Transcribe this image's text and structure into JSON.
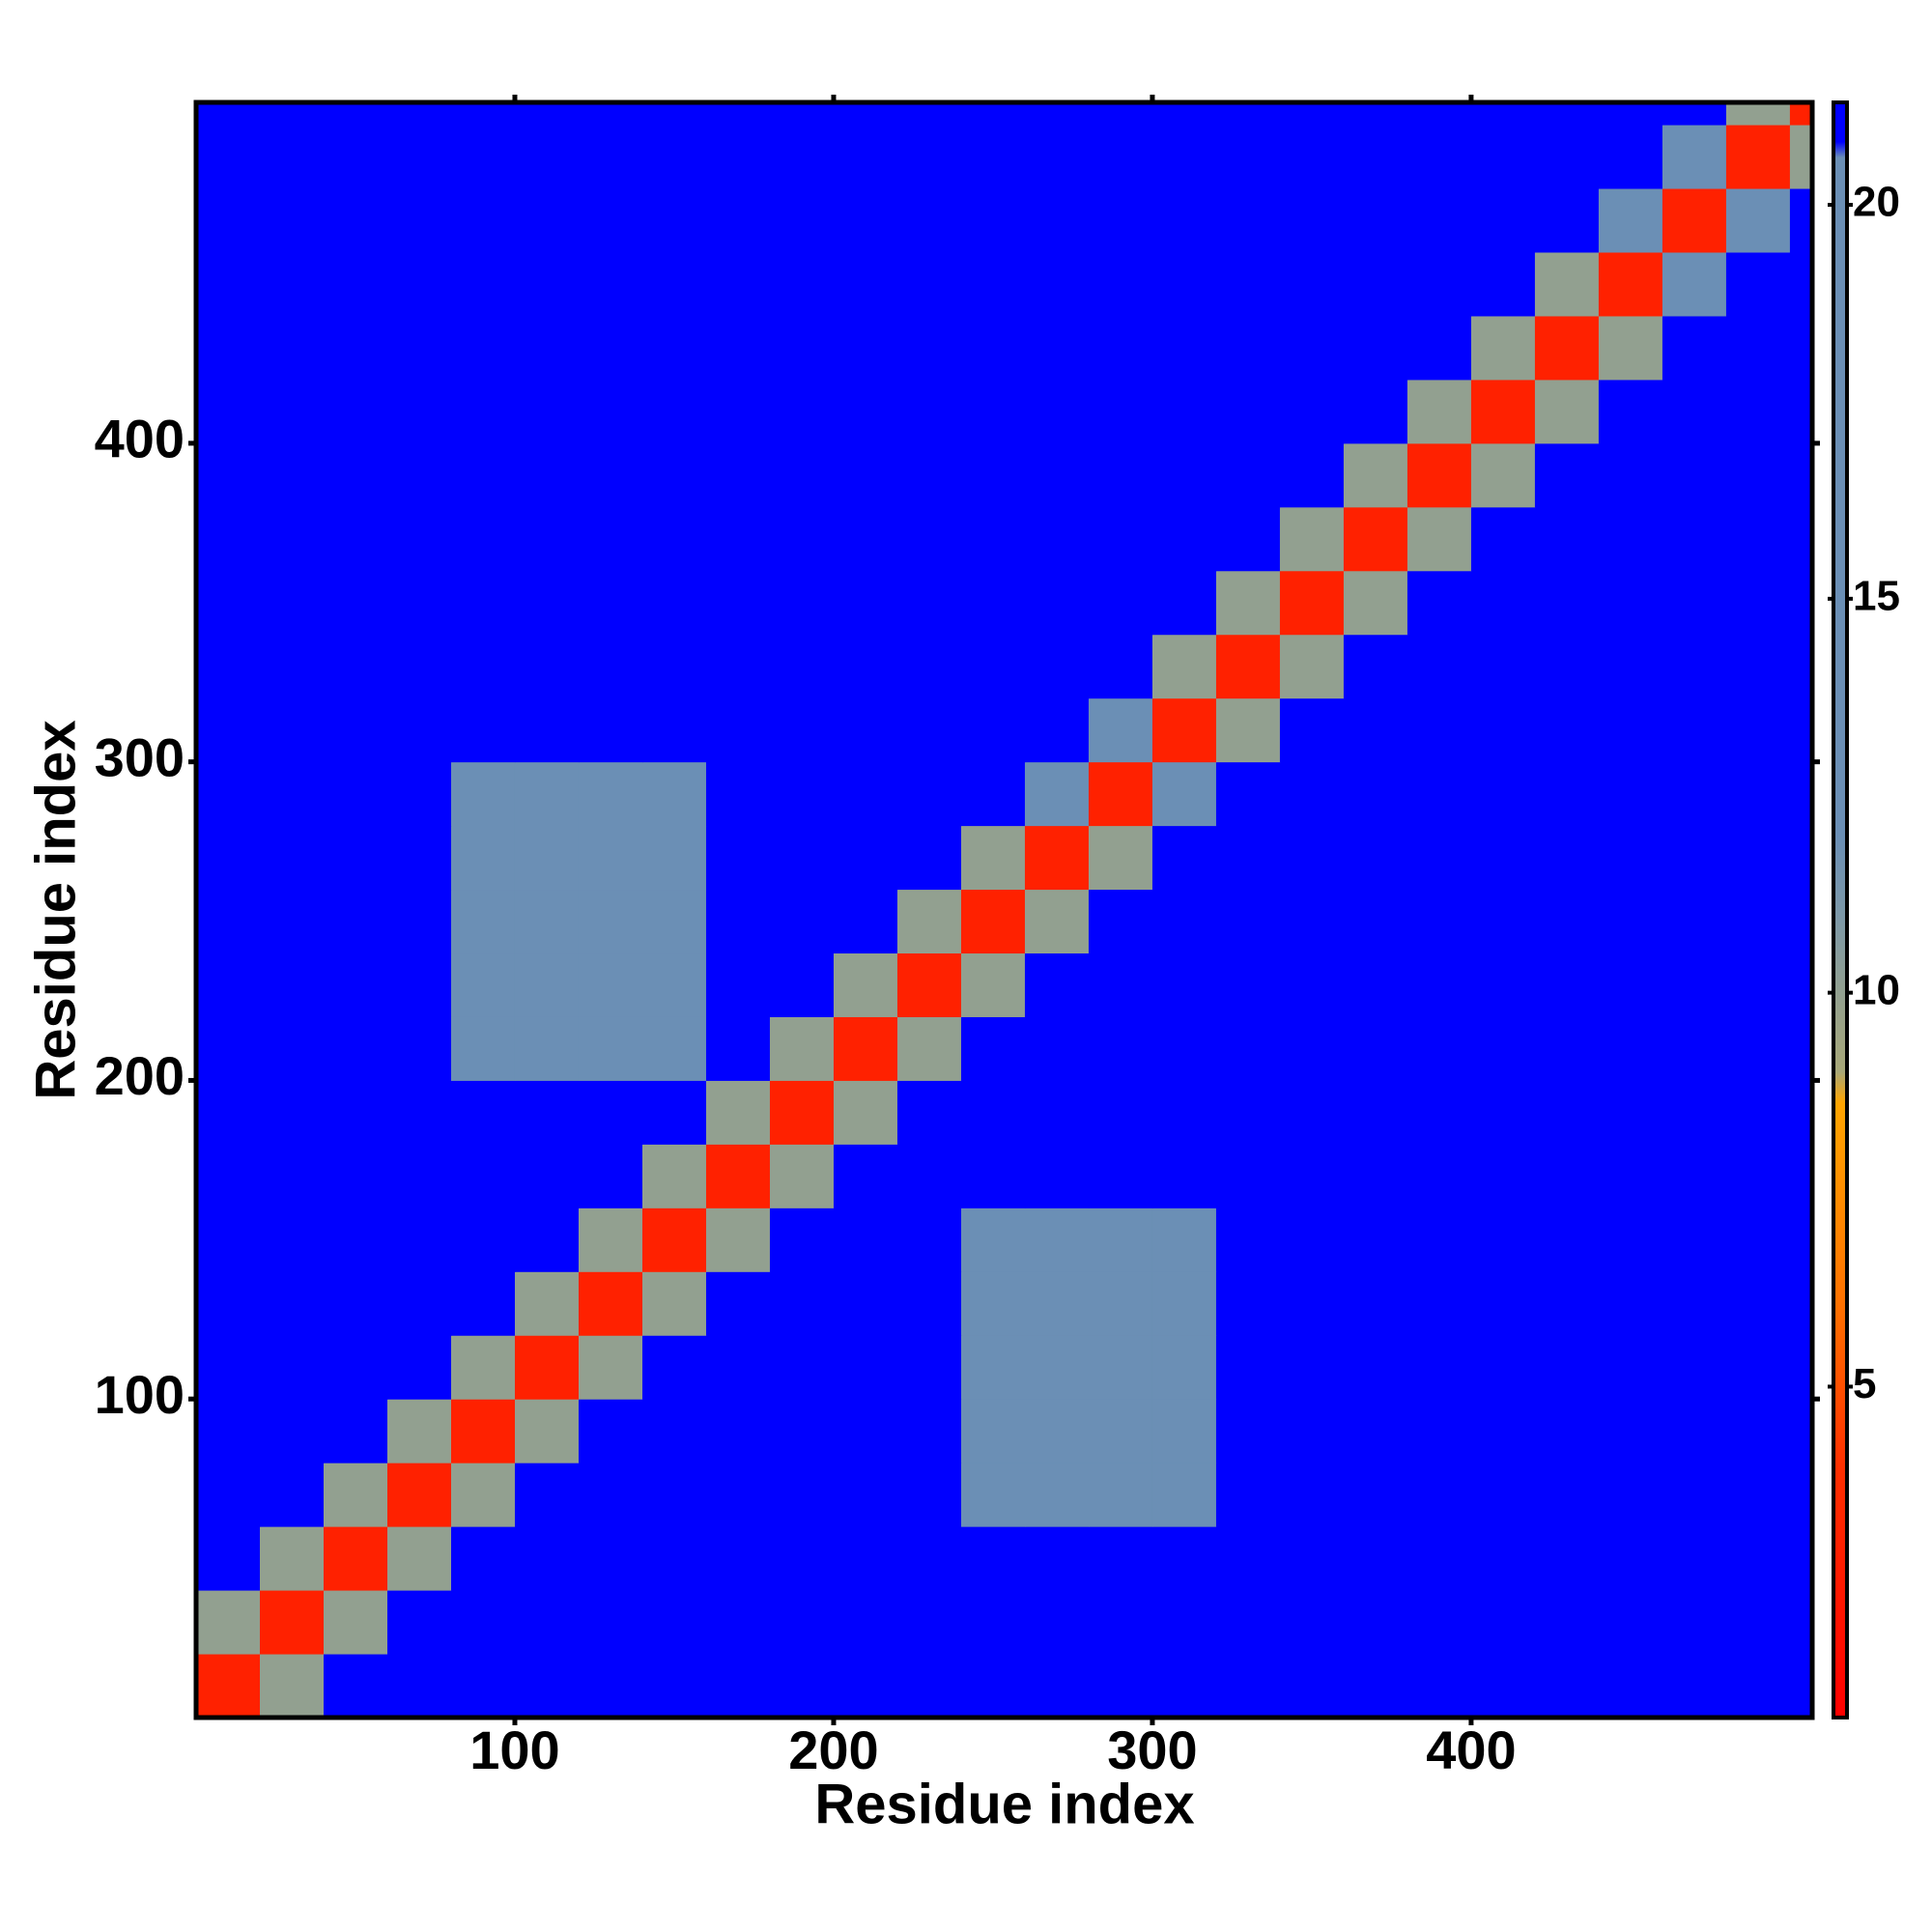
{
  "chart_data": {
    "type": "heatmap",
    "xlabel": "Residue index",
    "ylabel": "Residue index",
    "bins": [
      0,
      20,
      40,
      60,
      80,
      100,
      120,
      140,
      160,
      180,
      200,
      220,
      240,
      260,
      280,
      300,
      320,
      340,
      360,
      380,
      400,
      420,
      440,
      460,
      480,
      500,
      507
    ],
    "z": [
      [
        3,
        10,
        21,
        21,
        21,
        21,
        21,
        21,
        21,
        21,
        21,
        21,
        21,
        21,
        21,
        21,
        21,
        21,
        21,
        21,
        21,
        21,
        21,
        21,
        21,
        21
      ],
      [
        10,
        3,
        10,
        21,
        21,
        21,
        21,
        21,
        21,
        21,
        21,
        21,
        21,
        21,
        21,
        21,
        21,
        21,
        21,
        21,
        21,
        21,
        21,
        21,
        21,
        21
      ],
      [
        21,
        10,
        3,
        10,
        21,
        21,
        21,
        21,
        21,
        21,
        21,
        21,
        21,
        21,
        21,
        21,
        21,
        21,
        21,
        21,
        21,
        21,
        21,
        21,
        21,
        21
      ],
      [
        21,
        21,
        10,
        3,
        10,
        21,
        21,
        21,
        21,
        21,
        21,
        21,
        18,
        18,
        18,
        18,
        21,
        21,
        21,
        21,
        21,
        21,
        21,
        21,
        21,
        21
      ],
      [
        21,
        21,
        21,
        10,
        3,
        10,
        21,
        21,
        21,
        21,
        21,
        21,
        18,
        18,
        18,
        18,
        21,
        21,
        21,
        21,
        21,
        21,
        21,
        21,
        21,
        21
      ],
      [
        21,
        21,
        21,
        21,
        10,
        3,
        10,
        21,
        21,
        21,
        21,
        21,
        18,
        18,
        18,
        18,
        21,
        21,
        21,
        21,
        21,
        21,
        21,
        21,
        21,
        21
      ],
      [
        21,
        21,
        21,
        21,
        21,
        10,
        3,
        10,
        21,
        21,
        21,
        21,
        18,
        18,
        18,
        18,
        21,
        21,
        21,
        21,
        21,
        21,
        21,
        21,
        21,
        21
      ],
      [
        21,
        21,
        21,
        21,
        21,
        21,
        10,
        3,
        10,
        21,
        21,
        21,
        18,
        18,
        18,
        18,
        21,
        21,
        21,
        21,
        21,
        21,
        21,
        21,
        21,
        21
      ],
      [
        21,
        21,
        21,
        21,
        21,
        21,
        21,
        10,
        3,
        10,
        21,
        21,
        21,
        21,
        21,
        21,
        21,
        21,
        21,
        21,
        21,
        21,
        21,
        21,
        21,
        21
      ],
      [
        21,
        21,
        21,
        21,
        21,
        21,
        21,
        21,
        10,
        3,
        10,
        21,
        21,
        21,
        21,
        21,
        21,
        21,
        21,
        21,
        21,
        21,
        21,
        21,
        21,
        21
      ],
      [
        21,
        21,
        21,
        21,
        18,
        18,
        18,
        18,
        21,
        10,
        3,
        10,
        21,
        21,
        21,
        21,
        21,
        21,
        21,
        21,
        21,
        21,
        21,
        21,
        21,
        21
      ],
      [
        21,
        21,
        21,
        21,
        18,
        18,
        18,
        18,
        21,
        21,
        10,
        3,
        10,
        21,
        21,
        21,
        21,
        21,
        21,
        21,
        21,
        21,
        21,
        21,
        21,
        21
      ],
      [
        21,
        21,
        21,
        21,
        18,
        18,
        18,
        18,
        21,
        21,
        21,
        10,
        3,
        10,
        21,
        21,
        21,
        21,
        21,
        21,
        21,
        21,
        21,
        21,
        21,
        21
      ],
      [
        21,
        21,
        21,
        21,
        18,
        18,
        18,
        18,
        21,
        21,
        21,
        21,
        10,
        3,
        10,
        21,
        21,
        21,
        21,
        21,
        21,
        21,
        21,
        21,
        21,
        21
      ],
      [
        21,
        21,
        21,
        21,
        18,
        18,
        18,
        18,
        21,
        21,
        21,
        21,
        21,
        17,
        3,
        17,
        21,
        21,
        21,
        21,
        21,
        21,
        21,
        21,
        21,
        21
      ],
      [
        21,
        21,
        21,
        21,
        21,
        21,
        21,
        21,
        21,
        21,
        21,
        21,
        21,
        21,
        17,
        3,
        10,
        21,
        21,
        21,
        21,
        21,
        21,
        21,
        21,
        21
      ],
      [
        21,
        21,
        21,
        21,
        21,
        21,
        21,
        21,
        21,
        21,
        21,
        21,
        21,
        21,
        21,
        10,
        3,
        10,
        21,
        21,
        21,
        21,
        21,
        21,
        21,
        21
      ],
      [
        21,
        21,
        21,
        21,
        21,
        21,
        21,
        21,
        21,
        21,
        21,
        21,
        21,
        21,
        21,
        21,
        10,
        3,
        10,
        21,
        21,
        21,
        21,
        21,
        21,
        21
      ],
      [
        21,
        21,
        21,
        21,
        21,
        21,
        21,
        21,
        21,
        21,
        21,
        21,
        21,
        21,
        21,
        21,
        21,
        10,
        3,
        10,
        21,
        21,
        21,
        21,
        21,
        21
      ],
      [
        21,
        21,
        21,
        21,
        21,
        21,
        21,
        21,
        21,
        21,
        21,
        21,
        21,
        21,
        21,
        21,
        21,
        21,
        10,
        3,
        10,
        21,
        21,
        21,
        21,
        21
      ],
      [
        21,
        21,
        21,
        21,
        21,
        21,
        21,
        21,
        21,
        21,
        21,
        21,
        21,
        21,
        21,
        21,
        21,
        21,
        21,
        10,
        3,
        10,
        21,
        21,
        21,
        21
      ],
      [
        21,
        21,
        21,
        21,
        21,
        21,
        21,
        21,
        21,
        21,
        21,
        21,
        21,
        21,
        21,
        21,
        21,
        21,
        21,
        21,
        10,
        3,
        10,
        21,
        21,
        21
      ],
      [
        21,
        21,
        21,
        21,
        21,
        21,
        21,
        21,
        21,
        21,
        21,
        21,
        21,
        21,
        21,
        21,
        21,
        21,
        21,
        21,
        21,
        10,
        3,
        16,
        21,
        21
      ],
      [
        21,
        21,
        21,
        21,
        21,
        21,
        21,
        21,
        21,
        21,
        21,
        21,
        21,
        21,
        21,
        21,
        21,
        21,
        21,
        21,
        21,
        21,
        16,
        3,
        16,
        21
      ],
      [
        21,
        21,
        21,
        21,
        21,
        21,
        21,
        21,
        21,
        21,
        21,
        21,
        21,
        21,
        21,
        21,
        21,
        21,
        21,
        21,
        21,
        21,
        21,
        16,
        3,
        10
      ],
      [
        21,
        21,
        21,
        21,
        21,
        21,
        21,
        21,
        21,
        21,
        21,
        21,
        21,
        21,
        21,
        21,
        21,
        21,
        21,
        21,
        21,
        21,
        21,
        21,
        10,
        3
      ]
    ],
    "xlim": [
      0,
      507
    ],
    "ylim": [
      0,
      507
    ],
    "xticks": [
      100,
      200,
      300,
      400
    ],
    "yticks": [
      100,
      200,
      300,
      400
    ],
    "colorbar": {
      "lim": [
        0.8,
        21.3
      ],
      "ticks": [
        5,
        10,
        15,
        20
      ],
      "colorscale": [
        [
          0.8,
          "#ff0000"
        ],
        [
          4,
          "#ff3000"
        ],
        [
          6,
          "#ff7000"
        ],
        [
          8.6,
          "#ffa500"
        ],
        [
          9,
          "#a8a878"
        ],
        [
          11,
          "#7c98a8"
        ],
        [
          12,
          "#6b8fb5"
        ],
        [
          20.6,
          "#6b8fb5"
        ],
        [
          20.8,
          "#0000ff"
        ],
        [
          21.3,
          "#0000ff"
        ]
      ]
    }
  }
}
